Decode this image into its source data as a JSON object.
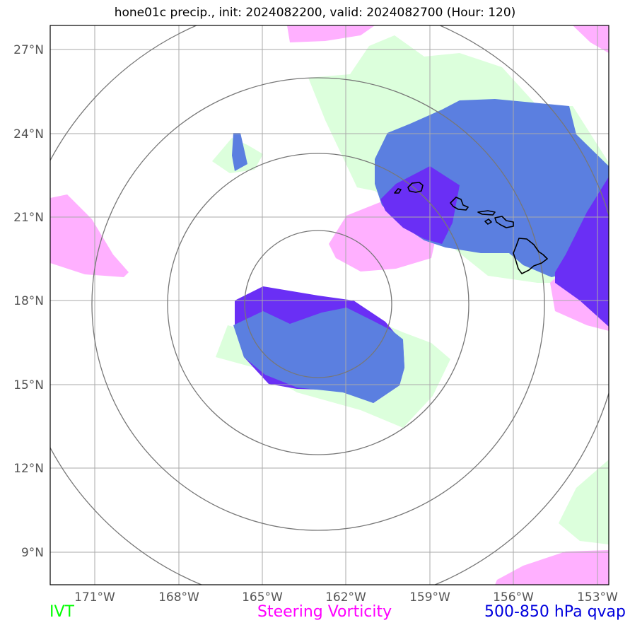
{
  "title": "hone01c precip., init: 2024082200, valid: 2024082700 (Hour: 120)",
  "axes": {
    "lat_labels": [
      "27°N",
      "24°N",
      "21°N",
      "18°N",
      "15°N",
      "12°N",
      "9°N"
    ],
    "lon_labels": [
      "171°W",
      "168°W",
      "165°W",
      "162°W",
      "159°W",
      "156°W",
      "153°W"
    ]
  },
  "legend": [
    {
      "label": "IVT",
      "color": "#00ff00"
    },
    {
      "label": "Steering Vorticity",
      "color": "#ff00ff"
    },
    {
      "label": "500-850 hPa qvap",
      "color": "#0000dd"
    }
  ],
  "colors": {
    "ivt_fill": "#dcffdc",
    "vorticity_fill": "#ffb0ff",
    "qvap_fill": "#5b7fe0",
    "qvap_strong_fill": "#6a2ff5",
    "coastline": "#000000",
    "range_rings": "#777777",
    "gridlines": "#aaaaaa"
  }
}
